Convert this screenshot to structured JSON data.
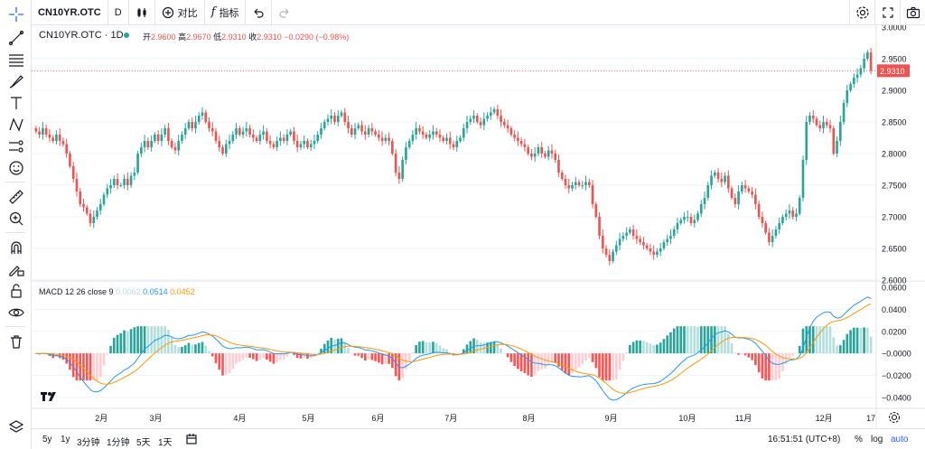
{
  "toolbar": {
    "symbol": "CN10YR.OTC",
    "interval": "D",
    "compare_label": "对比",
    "indicators_label": "指标"
  },
  "legend": {
    "title": "CN10YR.OTC · 1D",
    "open_label": "开",
    "open": "2.9600",
    "high_label": "高",
    "high": "2.9670",
    "low_label": "低",
    "low": "2.9310",
    "close_label": "收",
    "close": "2.9310",
    "change": "−0.0290 (−0.98%)"
  },
  "macd_legend": {
    "name": "MACD 12 26 close 9",
    "hist": "0.0062",
    "macd": "0.0514",
    "signal": "0.0452"
  },
  "price_axis": {
    "ticks": [
      "3.0000",
      "2.9500",
      "2.9000",
      "2.8500",
      "2.8000",
      "2.7500",
      "2.7000",
      "2.6500",
      "2.6000"
    ],
    "last_price": "2.9310"
  },
  "macd_axis": {
    "ticks": [
      "0.0600",
      "0.0400",
      "0.0200",
      "−0.0000",
      "−0.0200",
      "−0.0400"
    ]
  },
  "time_axis": {
    "ticks": [
      "2月",
      "3月",
      "4月",
      "5月",
      "6月",
      "7月",
      "8月",
      "9月",
      "10月",
      "11月",
      "12月",
      "17"
    ]
  },
  "bottom": {
    "ranges": [
      "5y",
      "1y",
      "3分钟",
      "1分钟",
      "5天",
      "1天"
    ],
    "clock": "16:51:51 (UTC+8)",
    "pct": "%",
    "log": "log",
    "auto": "auto"
  },
  "colors": {
    "up": "#26a69a",
    "down": "#ef5350",
    "hist_up_strong": "#26a69a",
    "hist_up_weak": "#b2dfdb",
    "hist_down_strong": "#ff5252",
    "hist_down_weak": "#ffcdd2",
    "macd_line": "#2196f3",
    "signal_line": "#ff9800"
  },
  "chart_data": {
    "type": "candlestick",
    "symbol": "CN10YR.OTC",
    "interval": "1D",
    "ylim": [
      2.6,
      3.0
    ],
    "last": 2.931,
    "closes": [
      2.835,
      2.83,
      2.84,
      2.83,
      2.825,
      2.82,
      2.83,
      2.82,
      2.815,
      2.8,
      2.78,
      2.76,
      2.74,
      2.72,
      2.715,
      2.705,
      2.69,
      2.7,
      2.71,
      2.72,
      2.735,
      2.745,
      2.75,
      2.76,
      2.75,
      2.75,
      2.76,
      2.75,
      2.765,
      2.77,
      2.8,
      2.81,
      2.82,
      2.81,
      2.82,
      2.83,
      2.82,
      2.83,
      2.84,
      2.82,
      2.81,
      2.805,
      2.82,
      2.83,
      2.84,
      2.85,
      2.84,
      2.85,
      2.86,
      2.865,
      2.85,
      2.84,
      2.835,
      2.82,
      2.81,
      2.8,
      2.815,
      2.82,
      2.83,
      2.84,
      2.83,
      2.835,
      2.84,
      2.83,
      2.825,
      2.82,
      2.83,
      2.835,
      2.82,
      2.815,
      2.81,
      2.82,
      2.825,
      2.82,
      2.83,
      2.835,
      2.82,
      2.81,
      2.815,
      2.82,
      2.81,
      2.815,
      2.82,
      2.83,
      2.84,
      2.85,
      2.855,
      2.86,
      2.85,
      2.86,
      2.865,
      2.85,
      2.84,
      2.83,
      2.84,
      2.845,
      2.835,
      2.83,
      2.84,
      2.835,
      2.83,
      2.825,
      2.82,
      2.825,
      2.82,
      2.8,
      2.77,
      2.76,
      2.79,
      2.81,
      2.82,
      2.83,
      2.84,
      2.835,
      2.83,
      2.825,
      2.83,
      2.835,
      2.83,
      2.825,
      2.82,
      2.825,
      2.815,
      2.81,
      2.82,
      2.825,
      2.84,
      2.85,
      2.855,
      2.86,
      2.85,
      2.845,
      2.855,
      2.86,
      2.865,
      2.87,
      2.86,
      2.85,
      2.845,
      2.84,
      2.83,
      2.825,
      2.82,
      2.815,
      2.81,
      2.8,
      2.795,
      2.8,
      2.81,
      2.8,
      2.795,
      2.805,
      2.8,
      2.79,
      2.77,
      2.76,
      2.75,
      2.745,
      2.75,
      2.755,
      2.75,
      2.75,
      2.755,
      2.75,
      2.72,
      2.7,
      2.67,
      2.65,
      2.64,
      2.63,
      2.645,
      2.655,
      2.665,
      2.67,
      2.675,
      2.68,
      2.67,
      2.665,
      2.66,
      2.655,
      2.65,
      2.645,
      2.64,
      2.645,
      2.65,
      2.66,
      2.665,
      2.67,
      2.68,
      2.69,
      2.695,
      2.7,
      2.7,
      2.69,
      2.695,
      2.705,
      2.72,
      2.73,
      2.75,
      2.765,
      2.77,
      2.76,
      2.755,
      2.765,
      2.745,
      2.73,
      2.72,
      2.74,
      2.75,
      2.745,
      2.74,
      2.735,
      2.72,
      2.7,
      2.69,
      2.675,
      2.66,
      2.67,
      2.68,
      2.69,
      2.7,
      2.705,
      2.71,
      2.7,
      2.705,
      2.73,
      2.79,
      2.85,
      2.86,
      2.855,
      2.845,
      2.84,
      2.85,
      2.845,
      2.84,
      2.8,
      2.82,
      2.85,
      2.88,
      2.9,
      2.91,
      2.92,
      2.925,
      2.935,
      2.95,
      2.96,
      2.931
    ],
    "macd_ylim": [
      -0.05,
      0.065
    ],
    "macd_hist_range": [
      -0.02,
      0.02
    ]
  }
}
